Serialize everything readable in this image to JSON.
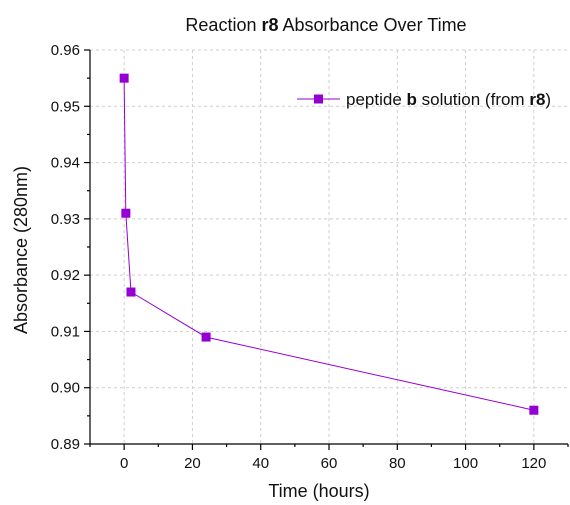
{
  "chart_data": {
    "type": "line",
    "title_parts": [
      {
        "text": "Reaction ",
        "bold": false
      },
      {
        "text": "r8",
        "bold": true
      },
      {
        "text": " Absorbance Over Time",
        "bold": false
      }
    ],
    "xlabel": "Time (hours)",
    "ylabel": "Absorbance (280nm)",
    "xlim": [
      -10,
      130
    ],
    "ylim": [
      0.89,
      0.96
    ],
    "xticks": [
      0,
      20,
      40,
      60,
      80,
      100,
      120
    ],
    "yticks": [
      0.89,
      0.9,
      0.91,
      0.92,
      0.93,
      0.94,
      0.95,
      0.96
    ],
    "ytick_labels": [
      "0.89",
      "0.90",
      "0.91",
      "0.92",
      "0.93",
      "0.94",
      "0.95",
      "0.96"
    ],
    "grid": true,
    "legend_position": "top-right",
    "series": [
      {
        "name_parts": [
          {
            "text": "peptide ",
            "bold": false
          },
          {
            "text": "b",
            "bold": true
          },
          {
            "text": " solution (from ",
            "bold": false
          },
          {
            "text": "r8",
            "bold": true
          },
          {
            "text": ")",
            "bold": false
          }
        ],
        "color": "#9400D3",
        "marker": "square",
        "x": [
          0,
          0.5,
          2,
          24,
          120
        ],
        "y": [
          0.955,
          0.931,
          0.917,
          0.909,
          0.896
        ]
      }
    ]
  }
}
